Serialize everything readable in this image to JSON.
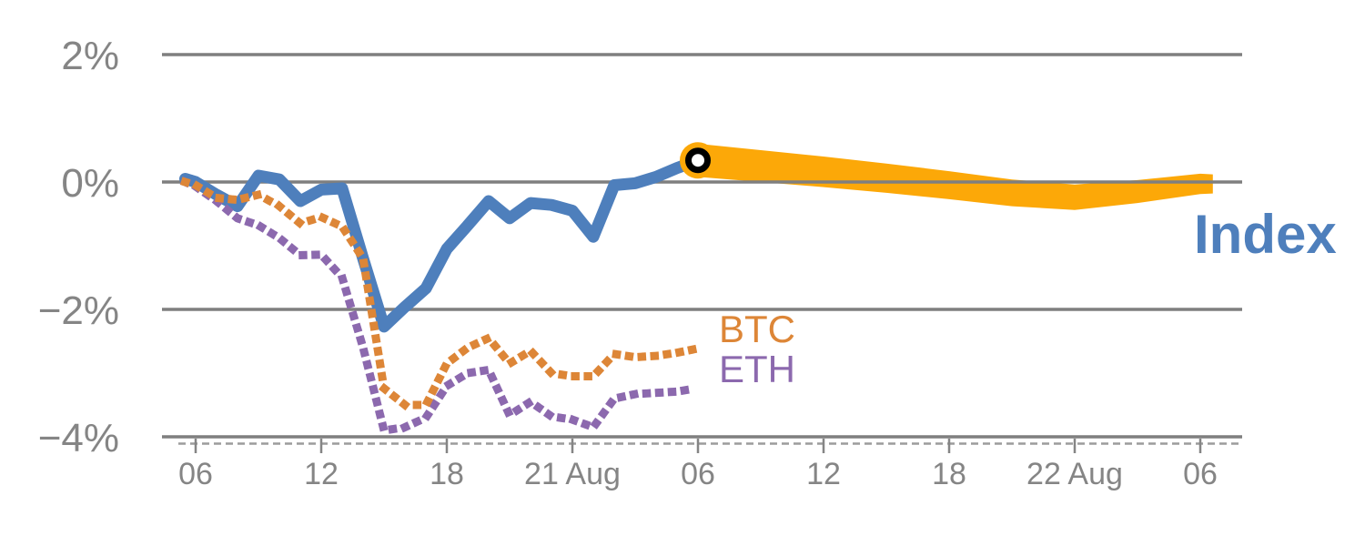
{
  "chart_data": {
    "type": "line",
    "title": "",
    "subtitle": "",
    "description": "Intraday percent-change chart: crypto Index (solid blue) vs BTC and ETH (dotted), with current-time marker and orange Index forecast band",
    "colors": {
      "index": "#4e7fbc",
      "btc": "#dd8637",
      "eth": "#8c69ae",
      "band": "#fca808",
      "grid": "#7f7f7f",
      "axis_text": "#858585",
      "axis_dashed": "#9c9c9c",
      "marker_ring": "#000000",
      "marker_center": "#ffffff"
    },
    "layout_hints": {
      "grid": "horizontal-only",
      "legend": "inline-labels-right",
      "x_range_hours": [
        5.3,
        56
      ],
      "y_range_pct": [
        -4.3,
        2.5
      ],
      "hours_origin": "20 Aug 00:00"
    },
    "y_axis": {
      "unit": "%",
      "ticks": [
        {
          "label": "2%",
          "value": 2
        },
        {
          "label": "0%",
          "value": 0
        },
        {
          "label": "−2%",
          "value": -2
        },
        {
          "label": "−4%",
          "value": -4
        }
      ]
    },
    "x_axis": {
      "ticks": [
        {
          "label": "06",
          "hour": 6
        },
        {
          "label": "12",
          "hour": 12
        },
        {
          "label": "18",
          "hour": 18
        },
        {
          "label": "21 Aug",
          "hour": 24
        },
        {
          "label": "06",
          "hour": 30
        },
        {
          "label": "12",
          "hour": 36
        },
        {
          "label": "18",
          "hour": 42
        },
        {
          "label": "22 Aug",
          "hour": 48
        },
        {
          "label": "06",
          "hour": 54
        }
      ]
    },
    "series": [
      {
        "name": "Index",
        "label": "Index",
        "style": "solid",
        "color_key": "index",
        "x_hours": [
          5.5,
          6,
          7,
          8,
          9,
          10,
          11,
          12,
          13,
          14,
          15,
          16,
          17,
          18,
          19,
          20,
          21,
          22,
          23,
          24,
          25,
          26,
          27,
          28,
          29,
          30
        ],
        "values": [
          0.05,
          0.0,
          -0.2,
          -0.38,
          0.1,
          0.04,
          -0.3,
          -0.12,
          -0.1,
          -1.2,
          -2.27,
          -1.96,
          -1.67,
          -1.05,
          -0.68,
          -0.3,
          -0.57,
          -0.33,
          -0.36,
          -0.45,
          -0.86,
          -0.05,
          -0.02,
          0.08,
          0.22,
          0.34
        ]
      },
      {
        "name": "ETH",
        "label": "ETH",
        "style": "dotted",
        "color_key": "eth",
        "x_hours": [
          5.5,
          6,
          7,
          8,
          9,
          10,
          11,
          12,
          13,
          14,
          15,
          16,
          17,
          18,
          19,
          20,
          21,
          22,
          23,
          24,
          25,
          26,
          27,
          28,
          29,
          29.9
        ],
        "values": [
          0.0,
          -0.07,
          -0.3,
          -0.57,
          -0.68,
          -0.88,
          -1.15,
          -1.14,
          -1.5,
          -2.6,
          -3.9,
          -3.85,
          -3.7,
          -3.2,
          -3.0,
          -2.95,
          -3.66,
          -3.45,
          -3.68,
          -3.73,
          -3.85,
          -3.4,
          -3.33,
          -3.31,
          -3.29,
          -3.24
        ]
      },
      {
        "name": "BTC",
        "label": "BTC",
        "style": "dotted",
        "color_key": "btc",
        "x_hours": [
          5.5,
          6,
          7,
          8,
          9,
          10,
          11,
          12,
          13,
          14,
          15,
          16,
          17,
          18,
          19,
          20,
          21,
          22,
          23,
          24,
          25,
          26,
          27,
          28,
          29,
          29.9
        ],
        "values": [
          0.0,
          -0.05,
          -0.25,
          -0.28,
          -0.2,
          -0.38,
          -0.65,
          -0.55,
          -0.7,
          -1.2,
          -3.24,
          -3.5,
          -3.5,
          -2.85,
          -2.6,
          -2.45,
          -2.85,
          -2.65,
          -3.0,
          -3.05,
          -3.05,
          -2.7,
          -2.75,
          -2.73,
          -2.68,
          -2.62
        ]
      }
    ],
    "forecast_band": {
      "name": "Index forecast",
      "color_key": "band",
      "x_hours": [
        30,
        33,
        36,
        39,
        42,
        45,
        48,
        51,
        54,
        54.6
      ],
      "center": [
        0.34,
        0.25,
        0.16,
        0.06,
        -0.05,
        -0.17,
        -0.24,
        -0.15,
        -0.03,
        -0.03
      ],
      "half_width": [
        0.26,
        0.25,
        0.24,
        0.23,
        0.22,
        0.21,
        0.2,
        0.18,
        0.16,
        0.15
      ]
    },
    "current_marker": {
      "x_hour": 30,
      "value": 0.34
    },
    "labels": {
      "index": "Index",
      "btc": "BTC",
      "eth": "ETH"
    }
  }
}
